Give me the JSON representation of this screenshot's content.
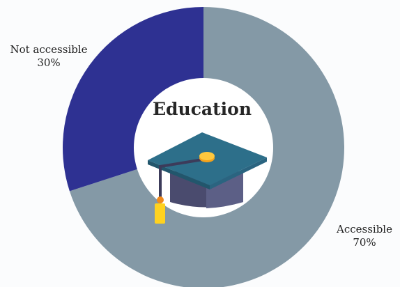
{
  "chart_data": {
    "type": "pie",
    "variant": "donut",
    "categories": [
      "Accessible",
      "Not accessible"
    ],
    "values": [
      70,
      30
    ],
    "value_labels": [
      "70%",
      "30%"
    ],
    "colors": [
      "#8499a6",
      "#2e3192"
    ],
    "center_title": "Education",
    "center_icon": "graduation-cap-icon",
    "legend": "none"
  }
}
